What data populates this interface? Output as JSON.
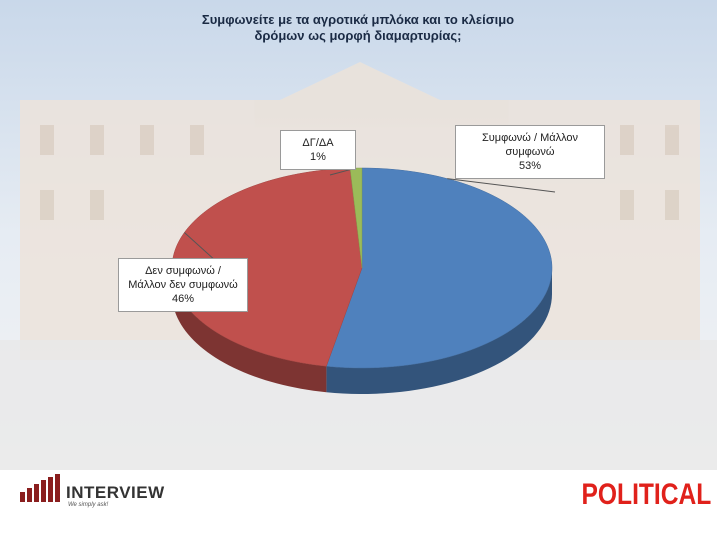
{
  "chart_data": {
    "type": "pie",
    "title": "Συμφωνείτε με τα αγροτικά μπλόκα και το κλείσιμο δρόμων ως μορφή διαμαρτυρίας;",
    "categories": [
      "Συμφωνώ / Μάλλον συμφωνώ",
      "Δεν συμφωνώ / Μάλλον δεν συμφωνώ",
      "ΔΓ/ΔΑ"
    ],
    "values": [
      53,
      46,
      1
    ],
    "value_labels": [
      "53%",
      "46%",
      "1%"
    ],
    "colors": [
      "#4f81bd",
      "#c0504d",
      "#9bbb59"
    ]
  },
  "branding": {
    "agency": "INTERVIEW",
    "slogan": "We simply ask!",
    "client": "POLITICAL"
  }
}
